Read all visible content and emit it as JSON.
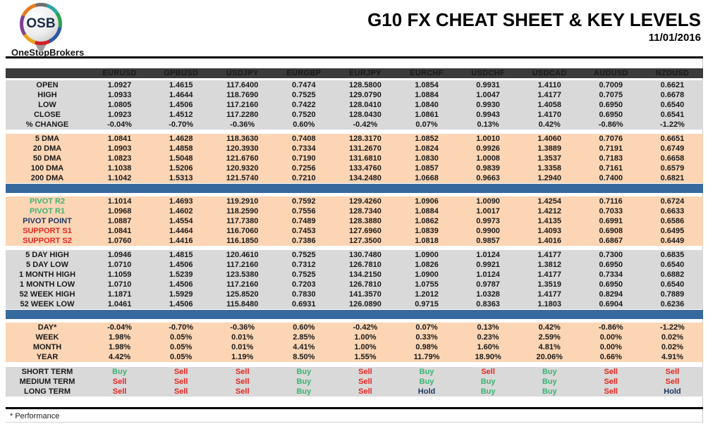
{
  "brand": {
    "logo_text": "OSB",
    "logo_name": "OneStopBrokers"
  },
  "header": {
    "title": "G10 FX CHEAT SHEET & KEY LEVELS",
    "date": "11/01/2016"
  },
  "footnote": "* Performance",
  "colors": {
    "header_bg": "#3B3B3B",
    "band_gray": "#D9D9D9",
    "band_peach": "#FCD5B4",
    "divider_blue": "#38699E",
    "buy_green": "#3CB371",
    "sell_red": "#E8251F",
    "hold_navy": "#1F3864"
  },
  "table": {
    "columns": [
      "EURUSD",
      "GPBUSD",
      "USDJPY",
      "EURGBP",
      "EURJPY",
      "EURCHF",
      "USDCHF",
      "USDCAD",
      "AUDUSD",
      "NZDUSD"
    ],
    "sections": [
      {
        "id": "ohlc",
        "style": "gray",
        "rows": [
          {
            "label": "OPEN",
            "values": [
              "1.0927",
              "1.4615",
              "117.6400",
              "0.7474",
              "128.5800",
              "1.0854",
              "0.9931",
              "1.4110",
              "0.7009",
              "0.6621"
            ]
          },
          {
            "label": "HIGH",
            "values": [
              "1.0933",
              "1.4644",
              "118.7690",
              "0.7525",
              "129.0790",
              "1.0884",
              "1.0047",
              "1.4177",
              "0.7075",
              "0.6678"
            ]
          },
          {
            "label": "LOW",
            "values": [
              "1.0805",
              "1.4506",
              "117.2160",
              "0.7422",
              "128.0410",
              "1.0840",
              "0.9930",
              "1.4058",
              "0.6950",
              "0.6540"
            ]
          },
          {
            "label": "CLOSE",
            "values": [
              "1.0923",
              "1.4512",
              "117.2280",
              "0.7520",
              "128.0430",
              "1.0861",
              "0.9943",
              "1.4170",
              "0.6950",
              "0.6541"
            ]
          },
          {
            "label": "% CHANGE",
            "values": [
              "-0.04%",
              "-0.70%",
              "-0.36%",
              "0.60%",
              "-0.42%",
              "0.07%",
              "0.13%",
              "0.42%",
              "-0.86%",
              "-1.22%"
            ]
          }
        ]
      },
      {
        "id": "dma",
        "style": "peach",
        "divider_after": true,
        "rows": [
          {
            "label": "5 DMA",
            "values": [
              "1.0841",
              "1.4628",
              "118.3630",
              "0.7408",
              "128.3170",
              "1.0852",
              "1.0010",
              "1.4060",
              "0.7076",
              "0.6651"
            ]
          },
          {
            "label": "20 DMA",
            "values": [
              "1.0903",
              "1.4858",
              "120.3930",
              "0.7334",
              "131.2670",
              "1.0824",
              "0.9926",
              "1.3889",
              "0.7191",
              "0.6749"
            ]
          },
          {
            "label": "50 DMA",
            "values": [
              "1.0823",
              "1.5048",
              "121.6760",
              "0.7190",
              "131.6810",
              "1.0830",
              "1.0008",
              "1.3537",
              "0.7183",
              "0.6658"
            ]
          },
          {
            "label": "100 DMA",
            "values": [
              "1.1038",
              "1.5206",
              "120.9320",
              "0.7256",
              "133.4760",
              "1.0857",
              "0.9839",
              "1.3358",
              "0.7161",
              "0.6579"
            ]
          },
          {
            "label": "200 DMA",
            "values": [
              "1.1042",
              "1.5313",
              "121.5740",
              "0.7210",
              "134.2480",
              "1.0668",
              "0.9663",
              "1.2940",
              "0.7400",
              "0.6821"
            ]
          }
        ]
      },
      {
        "id": "pivots",
        "style": "peach",
        "rows": [
          {
            "label": "PIVOT R2",
            "label_color": "buy_green",
            "values": [
              "1.1014",
              "1.4693",
              "119.2910",
              "0.7592",
              "129.4260",
              "1.0906",
              "1.0090",
              "1.4254",
              "0.7116",
              "0.6724"
            ]
          },
          {
            "label": "PIVOT R1",
            "label_color": "buy_green",
            "values": [
              "1.0968",
              "1.4602",
              "118.2590",
              "0.7556",
              "128.7340",
              "1.0884",
              "1.0017",
              "1.4212",
              "0.7033",
              "0.6633"
            ]
          },
          {
            "label": "PIVOT POINT",
            "label_color": "hold_navy",
            "values": [
              "1.0887",
              "1.4554",
              "117.7380",
              "0.7489",
              "128.3880",
              "1.0862",
              "0.9973",
              "1.4135",
              "0.6991",
              "0.6586"
            ]
          },
          {
            "label": "SUPPORT S1",
            "label_color": "sell_red",
            "values": [
              "1.0841",
              "1.4464",
              "116.7060",
              "0.7453",
              "127.6960",
              "1.0839",
              "0.9900",
              "1.4093",
              "0.6908",
              "0.6495"
            ]
          },
          {
            "label": "SUPPORT S2",
            "label_color": "sell_red",
            "values": [
              "1.0760",
              "1.4416",
              "116.1850",
              "0.7386",
              "127.3500",
              "1.0818",
              "0.9857",
              "1.4016",
              "0.6867",
              "0.6449"
            ]
          }
        ]
      },
      {
        "id": "ranges",
        "style": "gray",
        "divider_after": true,
        "rows": [
          {
            "label": "5 DAY HIGH",
            "values": [
              "1.0946",
              "1.4815",
              "120.4610",
              "0.7525",
              "130.7480",
              "1.0900",
              "1.0124",
              "1.4177",
              "0.7300",
              "0.6835"
            ]
          },
          {
            "label": "5 DAY LOW",
            "values": [
              "1.0710",
              "1.4506",
              "117.2160",
              "0.7312",
              "126.7810",
              "1.0826",
              "0.9921",
              "1.3812",
              "0.6950",
              "0.6540"
            ]
          },
          {
            "label": "1 MONTH HIGH",
            "values": [
              "1.1059",
              "1.5239",
              "123.5380",
              "0.7525",
              "134.2150",
              "1.0900",
              "1.0124",
              "1.4177",
              "0.7334",
              "0.6882"
            ]
          },
          {
            "label": "1 MONTH LOW",
            "values": [
              "1.0710",
              "1.4506",
              "117.2160",
              "0.7203",
              "126.7810",
              "1.0755",
              "0.9787",
              "1.3519",
              "0.6950",
              "0.6540"
            ]
          },
          {
            "label": "52 WEEK HIGH",
            "values": [
              "1.1871",
              "1.5929",
              "125.8520",
              "0.7830",
              "141.3570",
              "1.2012",
              "1.0328",
              "1.4177",
              "0.8294",
              "0.7889"
            ]
          },
          {
            "label": "52 WEEK LOW",
            "values": [
              "1.0461",
              "1.4506",
              "115.8480",
              "0.6931",
              "126.0890",
              "0.9715",
              "0.8363",
              "1.1803",
              "0.6904",
              "0.6236"
            ]
          }
        ]
      },
      {
        "id": "performance",
        "style": "peach",
        "rows": [
          {
            "label": "DAY*",
            "values": [
              "-0.04%",
              "-0.70%",
              "-0.36%",
              "0.60%",
              "-0.42%",
              "0.07%",
              "0.13%",
              "0.42%",
              "-0.86%",
              "-1.22%"
            ]
          },
          {
            "label": "WEEK",
            "values": [
              "1.98%",
              "0.05%",
              "0.01%",
              "2.85%",
              "1.00%",
              "0.33%",
              "0.23%",
              "2.59%",
              "0.00%",
              "0.02%"
            ]
          },
          {
            "label": "MONTH",
            "values": [
              "1.98%",
              "0.05%",
              "0.01%",
              "4.41%",
              "1.00%",
              "0.98%",
              "1.60%",
              "4.81%",
              "0.00%",
              "0.02%"
            ]
          },
          {
            "label": "YEAR",
            "values": [
              "4.42%",
              "0.05%",
              "1.19%",
              "8.50%",
              "1.55%",
              "11.79%",
              "18.90%",
              "20.06%",
              "0.66%",
              "4.91%"
            ]
          }
        ]
      },
      {
        "id": "signals",
        "style": "gray",
        "signal": true,
        "rows": [
          {
            "label": "SHORT TERM",
            "values": [
              "Buy",
              "Sell",
              "Sell",
              "Buy",
              "Sell",
              "Buy",
              "Sell",
              "Buy",
              "Sell",
              "Sell"
            ]
          },
          {
            "label": "MEDIUM TERM",
            "values": [
              "Sell",
              "Sell",
              "Sell",
              "Buy",
              "Sell",
              "Buy",
              "Buy",
              "Buy",
              "Sell",
              "Sell"
            ]
          },
          {
            "label": "LONG TERM",
            "values": [
              "Sell",
              "Sell",
              "Sell",
              "Buy",
              "Sell",
              "Hold",
              "Buy",
              "Buy",
              "Sell",
              "Hold"
            ]
          }
        ]
      }
    ]
  }
}
